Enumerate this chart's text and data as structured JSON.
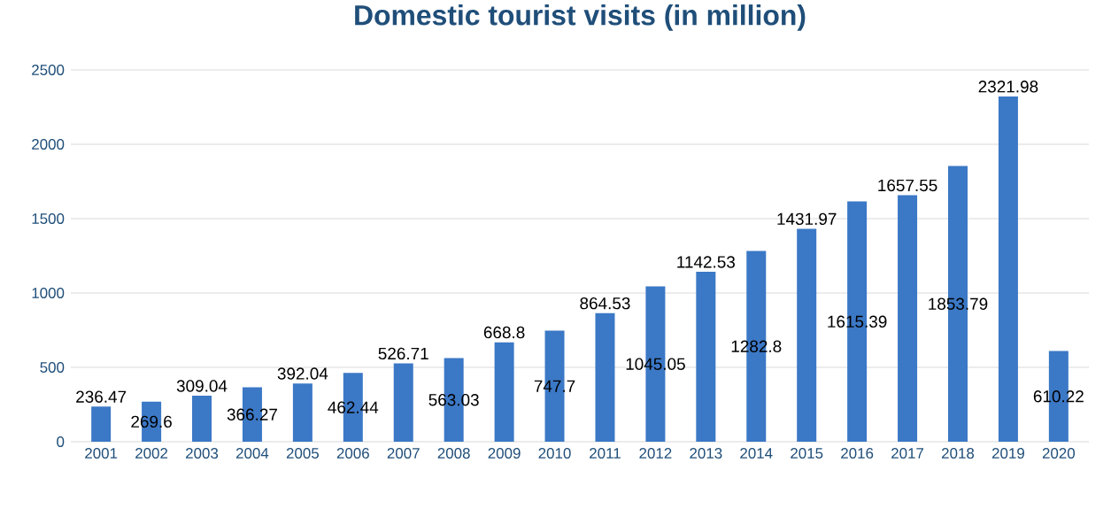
{
  "chart_data": {
    "type": "bar",
    "title": "Domestic tourist visits (in million)",
    "categories": [
      "2001",
      "2002",
      "2003",
      "2004",
      "2005",
      "2006",
      "2007",
      "2008",
      "2009",
      "2010",
      "2011",
      "2012",
      "2013",
      "2014",
      "2015",
      "2016",
      "2017",
      "2018",
      "2019",
      "2020"
    ],
    "values": [
      236.47,
      269.6,
      309.04,
      366.27,
      392.04,
      462.44,
      526.71,
      563.03,
      668.8,
      747.7,
      864.53,
      1045.05,
      1142.53,
      1282.8,
      1431.97,
      1615.39,
      1657.55,
      1853.79,
      2321.98,
      610.22
    ],
    "color": "#3b78c6",
    "ylim": [
      0,
      2500
    ],
    "yticks": [
      0,
      500,
      1000,
      1500,
      2000,
      2500
    ],
    "grid": "y",
    "data_labels": true
  }
}
